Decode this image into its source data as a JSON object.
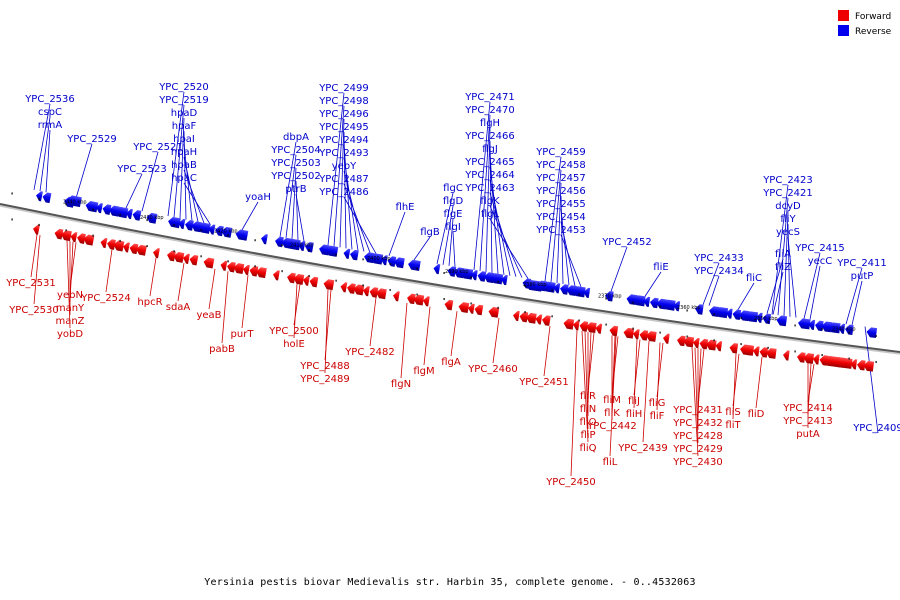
{
  "caption": "Yersinia pestis biovar Medievalis str. Harbin 35, complete genome. - 0..4532063",
  "legend": [
    {
      "label": "Forward",
      "color": "#ee0000"
    },
    {
      "label": "Reverse",
      "color": "#0000ee"
    }
  ],
  "kbp_ticks": [
    "2440 kbp",
    "2430 kbp",
    "2420 kbp",
    "2410 kbp",
    "2400 kbp",
    "2390 kbp",
    "2380 kbp",
    "2370 kbp",
    "2360 kbp",
    "2350 kbp",
    "2340 kbp"
  ],
  "forward_genes": [
    "YPC_2531",
    "YPC_2530",
    "yebN",
    "manY",
    "manZ",
    "yobD",
    "YPC_2524",
    "hpcR",
    "sdaA",
    "yeaB",
    "pabB",
    "purT",
    "YPC_2500",
    "holE",
    "YPC_2488",
    "YPC_2489",
    "YPC_2482",
    "flgN",
    "flgM",
    "flgA",
    "YPC_2460",
    "YPC_2451",
    "fliR",
    "fliN",
    "fliO",
    "fliP",
    "fliQ",
    "YPC_2450",
    "fliM",
    "fliK",
    "YPC_2442",
    "fliL",
    "fliJ",
    "fliH",
    "fliG",
    "fliF",
    "YPC_2439",
    "YPC_2431",
    "YPC_2432",
    "YPC_2429",
    "YPC_2430",
    "YPC_2428",
    "fliT",
    "fliS",
    "fliD",
    "YPC_2414",
    "YPC_2413",
    "putA"
  ],
  "reverse_genes": [
    "YPC_2536",
    "cspC",
    "rrmA",
    "YPC_2529",
    "YPC_2520",
    "YPC_2519",
    "hpaD",
    "hpaF",
    "YPC_2521",
    "hpaI",
    "hpaH",
    "hpaB",
    "hpaC",
    "YPC_2523",
    "YPC_2499",
    "YPC_2498",
    "YPC_2496",
    "YPC_2495",
    "YPC_2494",
    "YPC_2493",
    "dbpA",
    "YPC_2504",
    "YPC_2503",
    "YPC_2502",
    "yebY",
    "ptrB",
    "YPC_2487",
    "YPC_2486",
    "yoaH",
    "flhE",
    "flgB",
    "flgC",
    "flgD",
    "flgE",
    "flgI",
    "YPC_2471",
    "YPC_2470",
    "flgH",
    "YPC_2466",
    "flgJ",
    "YPC_2465",
    "YPC_2464",
    "YPC_2463",
    "flgK",
    "flgL",
    "YPC_2459",
    "YPC_2458",
    "YPC_2457",
    "YPC_2456",
    "YPC_2455",
    "YPC_2454",
    "YPC_2453",
    "YPC_2452",
    "fliE",
    "YPC_2434",
    "YPC_2433",
    "fliC",
    "YPC_2423",
    "YPC_2421",
    "dcyD",
    "fliY",
    "yecS",
    "fliA",
    "fliZ",
    "YPC_2415",
    "yecC",
    "YPC_2411",
    "putP",
    "YPC_2409"
  ]
}
